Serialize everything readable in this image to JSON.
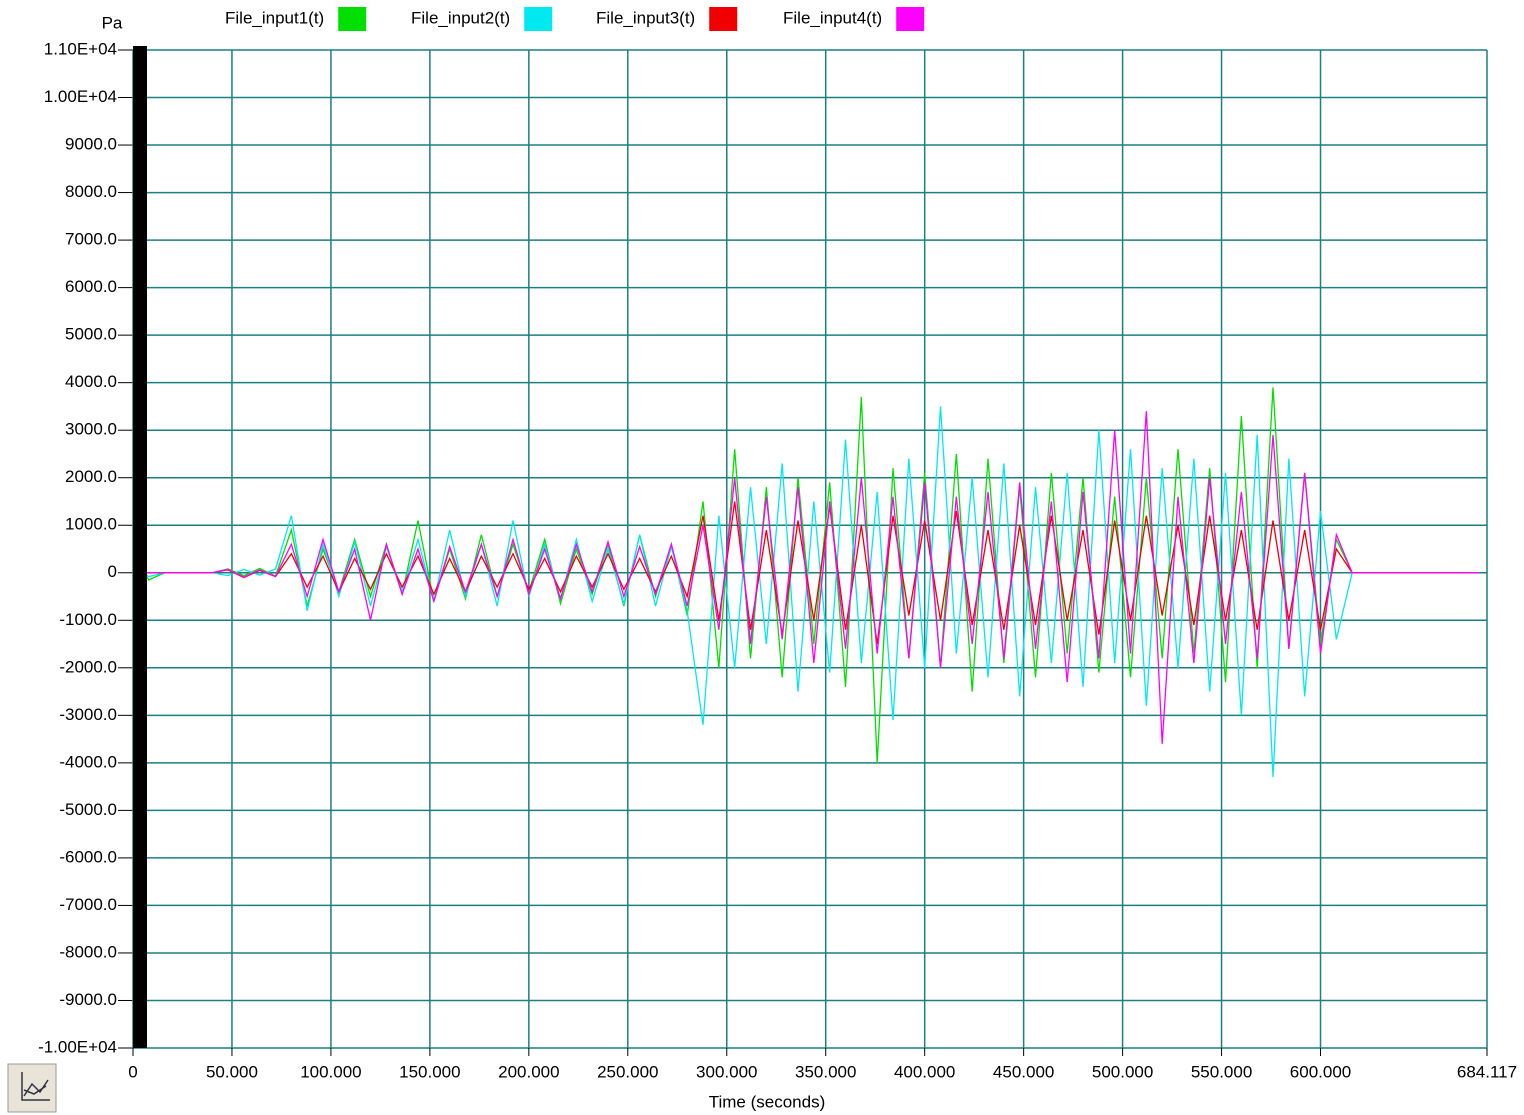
{
  "chart_data": {
    "type": "line",
    "y_label": "Pa",
    "x_label": "Time (seconds)",
    "grid": true,
    "legend": "top",
    "xlim": [
      0,
      684.117
    ],
    "ylim": [
      -10000,
      11000
    ],
    "xticks": [
      0,
      {
        "value": 50,
        "label": "50.000"
      },
      {
        "value": 100,
        "label": "100.000"
      },
      {
        "value": 150,
        "label": "150.000"
      },
      {
        "value": 200,
        "label": "200.000"
      },
      {
        "value": 250,
        "label": "250.000"
      },
      {
        "value": 300,
        "label": "300.000"
      },
      {
        "value": 350,
        "label": "350.000"
      },
      {
        "value": 400,
        "label": "400.000"
      },
      {
        "value": 450,
        "label": "450.000"
      },
      {
        "value": 500,
        "label": "500.000"
      },
      {
        "value": 550,
        "label": "550.000"
      },
      {
        "value": 600,
        "label": "600.000"
      },
      684.117
    ],
    "yticks": [
      {
        "value": 11000,
        "label": "1.10E+04"
      },
      {
        "value": 10000,
        "label": "1.00E+04"
      },
      {
        "value": 9000,
        "label": "9000.0"
      },
      {
        "value": 8000,
        "label": "8000.0"
      },
      {
        "value": 7000,
        "label": "7000.0"
      },
      {
        "value": 6000,
        "label": "6000.0"
      },
      {
        "value": 5000,
        "label": "5000.0"
      },
      {
        "value": 4000,
        "label": "4000.0"
      },
      {
        "value": 3000,
        "label": "3000.0"
      },
      {
        "value": 2000,
        "label": "2000.0"
      },
      {
        "value": 1000,
        "label": "1000.0"
      },
      0,
      {
        "value": -1000,
        "label": "-1000.0"
      },
      {
        "value": -2000,
        "label": "-2000.0"
      },
      {
        "value": -3000,
        "label": "-3000.0"
      },
      {
        "value": -4000,
        "label": "-4000.0"
      },
      {
        "value": -5000,
        "label": "-5000.0"
      },
      {
        "value": -6000,
        "label": "-6000.0"
      },
      {
        "value": -7000,
        "label": "-7000.0"
      },
      {
        "value": -8000,
        "label": "-8000.0"
      },
      {
        "value": -9000,
        "label": "-9000.0"
      },
      {
        "value": -10000,
        "label": "-1.00E+04"
      }
    ],
    "x": [
      0,
      8,
      16,
      24,
      32,
      40,
      48,
      56,
      64,
      72,
      80,
      88,
      96,
      104,
      112,
      120,
      128,
      136,
      144,
      152,
      160,
      168,
      176,
      184,
      192,
      200,
      208,
      216,
      224,
      232,
      240,
      248,
      256,
      264,
      272,
      280,
      288,
      296,
      304,
      312,
      320,
      328,
      336,
      344,
      352,
      360,
      368,
      376,
      384,
      392,
      400,
      408,
      416,
      424,
      432,
      440,
      448,
      456,
      464,
      472,
      480,
      488,
      496,
      504,
      512,
      520,
      528,
      536,
      544,
      552,
      560,
      568,
      576,
      584,
      592,
      600,
      608,
      616,
      624,
      632,
      640,
      648,
      656,
      664,
      672,
      680
    ],
    "series": [
      {
        "name": "File_input1(t)",
        "color": "#00e000",
        "values": [
          300,
          -150,
          0,
          0,
          0,
          0,
          80,
          -60,
          90,
          -70,
          900,
          -700,
          500,
          -400,
          700,
          -500,
          600,
          -450,
          1100,
          -600,
          500,
          -550,
          800,
          -500,
          600,
          -400,
          700,
          -650,
          500,
          -450,
          600,
          -700,
          800,
          -500,
          600,
          -900,
          1500,
          -2000,
          2600,
          -1800,
          1800,
          -2200,
          2000,
          -1500,
          1900,
          -2400,
          3700,
          -4000,
          2200,
          -1800,
          2100,
          -2000,
          2500,
          -2500,
          2400,
          -1900,
          1800,
          -2200,
          2100,
          -1700,
          2000,
          -2100,
          1600,
          -2200,
          2000,
          -1800,
          2600,
          -1700,
          2200,
          -2300,
          3300,
          -2000,
          3900,
          -1600,
          2100,
          -1500,
          700,
          0,
          0,
          0,
          0,
          0,
          0,
          0,
          0,
          0
        ]
      },
      {
        "name": "File_input2(t)",
        "color": "#00e8f0",
        "values": [
          100,
          -80,
          0,
          0,
          0,
          0,
          -60,
          70,
          -50,
          80,
          1200,
          -800,
          600,
          -500,
          650,
          -700,
          550,
          -400,
          700,
          -600,
          900,
          -500,
          600,
          -700,
          1100,
          -500,
          600,
          -550,
          700,
          -600,
          500,
          -650,
          800,
          -700,
          550,
          -800,
          -3200,
          1200,
          -2000,
          1800,
          -1500,
          2300,
          -2500,
          1500,
          -2100,
          2800,
          -1900,
          1700,
          -3100,
          2400,
          -2000,
          3500,
          -1700,
          2000,
          -2200,
          2300,
          -2600,
          1800,
          -1900,
          2100,
          -2400,
          3000,
          -1900,
          2600,
          -2800,
          2200,
          -2000,
          2400,
          -2500,
          2100,
          -3000,
          2900,
          -4300,
          2400,
          -2600,
          1300,
          -1400,
          0,
          0,
          0,
          0,
          0,
          0,
          0,
          0,
          0
        ]
      },
      {
        "name": "File_input3(t)",
        "color": "#f00000",
        "values": [
          0,
          0,
          0,
          0,
          0,
          0,
          60,
          -100,
          50,
          -80,
          400,
          -300,
          350,
          -400,
          300,
          -350,
          400,
          -300,
          350,
          -450,
          300,
          -400,
          350,
          -300,
          400,
          -350,
          300,
          -400,
          350,
          -300,
          400,
          -350,
          300,
          -400,
          350,
          -500,
          1200,
          -1000,
          1500,
          -1200,
          900,
          -1300,
          1100,
          -1000,
          1400,
          -1200,
          1000,
          -1500,
          1200,
          -900,
          1100,
          -1000,
          1300,
          -1100,
          900,
          -1200,
          1000,
          -1100,
          1200,
          -1000,
          900,
          -1300,
          1100,
          -1000,
          1200,
          -900,
          1000,
          -1100,
          1200,
          -1000,
          900,
          -1200,
          1100,
          -1000,
          900,
          -1200,
          500,
          0,
          0,
          0,
          0,
          0,
          0,
          0,
          0,
          0
        ]
      },
      {
        "name": "File_input4(t)",
        "color": "#ff00ff",
        "values": [
          0,
          0,
          0,
          0,
          0,
          0,
          70,
          -90,
          60,
          -80,
          600,
          -500,
          700,
          -400,
          500,
          -1000,
          600,
          -450,
          500,
          -600,
          550,
          -400,
          600,
          -500,
          700,
          -450,
          500,
          -550,
          600,
          -400,
          650,
          -500,
          550,
          -450,
          600,
          -700,
          1000,
          -1200,
          2000,
          -1500,
          1600,
          -1400,
          1800,
          -1900,
          1500,
          -1600,
          2000,
          -1700,
          1600,
          -1800,
          1900,
          -2000,
          1600,
          -1500,
          1700,
          -1800,
          1900,
          -1600,
          1500,
          -2300,
          1700,
          -1800,
          3000,
          -1700,
          3400,
          -3600,
          1600,
          -1900,
          2000,
          -1500,
          1700,
          -1800,
          2900,
          -1600,
          2100,
          -1700,
          800,
          0,
          0,
          0,
          0,
          0,
          0,
          0,
          0,
          0
        ]
      }
    ]
  }
}
